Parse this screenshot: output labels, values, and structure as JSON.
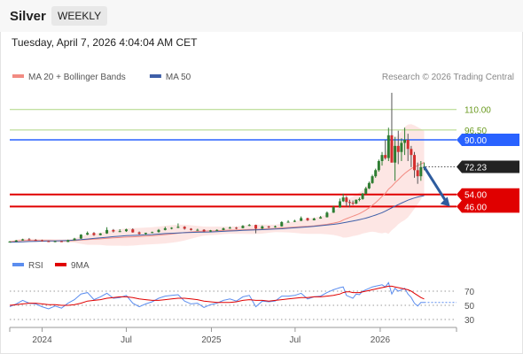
{
  "header": {
    "instrument": "Silver",
    "period_button": "WEEKLY",
    "timestamp": "Tuesday, April 7, 2026 4:04:04 AM CET"
  },
  "credit": "Research © 2026 Trading Central",
  "colors": {
    "candle_up": "#2e7d32",
    "candle_down": "#d32f2f",
    "ma20": "#f28b82",
    "bollinger_fill": "#fde3e1",
    "ma50": "#3e5fa8",
    "resistance": "#aed581",
    "pivot": "#2962ff",
    "support": "#e00000",
    "current_price": "#222222",
    "arrow": "#2e5c9e",
    "rsi": "#5b8def",
    "rsi_ma": "#e00000"
  },
  "chart_data": [
    {
      "type": "candlestick",
      "legend": [
        {
          "label": "MA 20 + Bollinger Bands",
          "color": "#f28b82"
        },
        {
          "label": "MA 50",
          "color": "#3e5fa8"
        }
      ],
      "x_tick_labels": [
        "2024",
        "Jul",
        "2025",
        "Jul",
        "2026"
      ],
      "x_ticks": [
        "2024-01-01",
        "2024-07-01",
        "2025-01-01",
        "2025-07-01",
        "2026-01-01"
      ],
      "x_range": [
        "2023-10-23",
        "2026-06-15"
      ],
      "y_range": [
        20,
        125
      ],
      "levels": [
        {
          "label": "110.00",
          "value": 110.0,
          "role": "resistance"
        },
        {
          "label": "96.50",
          "value": 96.5,
          "role": "resistance"
        },
        {
          "label": "90.00",
          "value": 90.0,
          "role": "pivot"
        },
        {
          "label": "72.23",
          "value": 72.23,
          "role": "last"
        },
        {
          "label": "54.00",
          "value": 54.0,
          "role": "support"
        },
        {
          "label": "46.00",
          "value": 46.0,
          "role": "support"
        }
      ],
      "projection": {
        "from": "2026-04-06",
        "from_value": 72.2,
        "to": "2026-06-01",
        "to_value": 46.0
      },
      "x": [
        "2023-10-23",
        "2023-11-06",
        "2023-11-20",
        "2023-12-04",
        "2023-12-18",
        "2024-01-01",
        "2024-01-15",
        "2024-01-29",
        "2024-02-12",
        "2024-02-26",
        "2024-03-11",
        "2024-03-25",
        "2024-04-08",
        "2024-04-22",
        "2024-05-06",
        "2024-05-20",
        "2024-06-03",
        "2024-06-17",
        "2024-07-01",
        "2024-07-15",
        "2024-07-29",
        "2024-08-12",
        "2024-08-26",
        "2024-09-09",
        "2024-09-23",
        "2024-10-07",
        "2024-10-21",
        "2024-11-04",
        "2024-11-18",
        "2024-12-02",
        "2024-12-16",
        "2024-12-30",
        "2025-01-13",
        "2025-01-27",
        "2025-02-10",
        "2025-02-24",
        "2025-03-10",
        "2025-03-24",
        "2025-04-07",
        "2025-04-21",
        "2025-05-05",
        "2025-05-19",
        "2025-06-02",
        "2025-06-16",
        "2025-06-30",
        "2025-07-14",
        "2025-07-28",
        "2025-08-11",
        "2025-08-25",
        "2025-09-08",
        "2025-09-22",
        "2025-10-06",
        "2025-10-13",
        "2025-10-20",
        "2025-10-27",
        "2025-11-03",
        "2025-11-10",
        "2025-11-17",
        "2025-11-24",
        "2025-12-01",
        "2025-12-08",
        "2025-12-15",
        "2025-12-22",
        "2025-12-29",
        "2026-01-05",
        "2026-01-12",
        "2026-01-19",
        "2026-01-26",
        "2026-02-02",
        "2026-02-09",
        "2026-02-16",
        "2026-02-23",
        "2026-03-02",
        "2026-03-09",
        "2026-03-16",
        "2026-03-23",
        "2026-03-30",
        "2026-04-06"
      ],
      "open": [
        22.8,
        22.9,
        23.7,
        24.4,
        24.0,
        23.8,
        23.2,
        22.8,
        23.2,
        22.7,
        23.8,
        24.9,
        27.5,
        28.6,
        27.2,
        28.3,
        30.6,
        29.6,
        29.8,
        31.0,
        29.0,
        28.0,
        28.7,
        29.2,
        30.6,
        31.7,
        32.0,
        32.7,
        31.4,
        30.6,
        30.7,
        29.6,
        30.3,
        30.6,
        31.6,
        32.1,
        31.8,
        33.3,
        33.9,
        31.5,
        32.9,
        32.7,
        33.0,
        35.8,
        36.0,
        36.6,
        38.4,
        37.0,
        38.1,
        39.0,
        42.0,
        45.5,
        49.5,
        52.0,
        49.0,
        48.5,
        48.0,
        50.5,
        51.0,
        54.5,
        58.0,
        61.5,
        66.0,
        70.0,
        76.0,
        80.0,
        78.0,
        93.0,
        75.0,
        86.0,
        82.0,
        88.0,
        90.0,
        84.0,
        80.0,
        70.0,
        66.0,
        72.0
      ],
      "high": [
        23.3,
        24.0,
        24.8,
        25.3,
        24.6,
        24.2,
        23.6,
        23.4,
        23.5,
        24.2,
        25.4,
        27.8,
        29.6,
        29.2,
        28.6,
        32.4,
        31.2,
        31.1,
        31.4,
        31.7,
        29.6,
        28.8,
        29.5,
        31.2,
        32.7,
        32.4,
        34.9,
        33.1,
        31.8,
        31.4,
        31.1,
        30.6,
        31.0,
        32.2,
        32.8,
        32.6,
        33.8,
        34.5,
        34.1,
        33.6,
        33.3,
        33.5,
        36.3,
        37.0,
        37.3,
        39.5,
        38.7,
        38.7,
        39.8,
        42.8,
        46.6,
        51.3,
        54.5,
        53.0,
        50.5,
        50.0,
        50.7,
        52.0,
        55.0,
        59.0,
        62.5,
        67.0,
        71.0,
        77.0,
        82.0,
        90.0,
        98.0,
        121.0,
        92.0,
        96.0,
        91.0,
        98.0,
        94.0,
        86.0,
        82.0,
        75.0,
        76.0,
        75.0
      ],
      "low": [
        22.5,
        22.7,
        23.5,
        23.7,
        23.6,
        22.9,
        22.8,
        22.5,
        22.6,
        22.6,
        23.7,
        24.7,
        27.2,
        26.7,
        27.0,
        28.0,
        28.9,
        29.2,
        29.3,
        28.8,
        27.5,
        27.3,
        28.5,
        28.8,
        30.3,
        31.0,
        31.8,
        30.8,
        30.2,
        30.1,
        29.1,
        29.3,
        30.0,
        30.4,
        31.4,
        31.0,
        31.6,
        33.1,
        28.4,
        31.2,
        31.8,
        32.1,
        32.8,
        35.6,
        35.8,
        36.4,
        36.5,
        36.9,
        38.0,
        38.8,
        41.8,
        45.2,
        49.0,
        46.0,
        45.5,
        47.0,
        47.5,
        49.5,
        50.5,
        54.0,
        57.5,
        61.0,
        65.0,
        69.0,
        73.0,
        77.0,
        76.0,
        75.0,
        63.0,
        74.0,
        76.0,
        80.0,
        76.0,
        72.0,
        65.0,
        61.0,
        63.0,
        70.0
      ],
      "close": [
        22.9,
        23.7,
        24.4,
        24.0,
        23.8,
        23.2,
        22.8,
        23.2,
        22.7,
        23.8,
        24.9,
        27.5,
        28.6,
        27.2,
        28.3,
        30.6,
        29.6,
        29.8,
        31.0,
        29.0,
        28.0,
        28.7,
        29.2,
        30.6,
        31.7,
        32.0,
        32.7,
        31.4,
        30.6,
        30.7,
        29.6,
        30.3,
        30.6,
        31.6,
        32.1,
        31.8,
        33.3,
        33.9,
        31.5,
        32.9,
        32.7,
        33.0,
        35.8,
        36.0,
        36.6,
        38.4,
        37.0,
        38.1,
        39.0,
        42.0,
        45.5,
        49.5,
        52.0,
        49.0,
        48.5,
        48.0,
        50.5,
        51.0,
        54.5,
        58.0,
        61.5,
        66.0,
        70.0,
        76.0,
        80.0,
        78.0,
        93.0,
        75.0,
        86.0,
        82.0,
        88.0,
        90.0,
        84.0,
        80.0,
        70.0,
        66.0,
        72.0,
        72.2
      ],
      "ma50": [
        22.5,
        22.6,
        22.8,
        23.0,
        23.1,
        23.2,
        23.3,
        23.4,
        23.5,
        23.7,
        23.9,
        24.2,
        24.6,
        25.0,
        25.4,
        25.8,
        26.2,
        26.5,
        26.8,
        27.0,
        27.2,
        27.4,
        27.6,
        27.9,
        28.2,
        28.4,
        28.6,
        28.8,
        29.0,
        29.1,
        29.2,
        29.3,
        29.5,
        29.7,
        29.9,
        30.1,
        30.3,
        30.5,
        30.6,
        30.8,
        31.0,
        31.2,
        31.4,
        31.7,
        32.0,
        32.3,
        32.6,
        33.0,
        33.4,
        33.8,
        34.3,
        34.9,
        35.3,
        35.7,
        36.1,
        36.5,
        36.9,
        37.4,
        37.9,
        38.4,
        39.0,
        39.7,
        40.4,
        41.2,
        42.0,
        43.0,
        44.1,
        45.2,
        46.3,
        47.3,
        48.3,
        49.3,
        50.2,
        51.0,
        51.7,
        52.3,
        52.8,
        53.2
      ]
    },
    {
      "type": "line",
      "legend": [
        {
          "label": "RSI",
          "color": "#5b8def"
        },
        {
          "label": "9MA",
          "color": "#e00000"
        }
      ],
      "y_tick_labels": [
        "70",
        "50",
        "30"
      ],
      "y_ticks": [
        70,
        50,
        30
      ],
      "y_range": [
        25,
        80
      ],
      "series": [
        {
          "name": "RSI",
          "values": [
            48,
            52,
            57,
            53,
            52,
            48,
            45,
            49,
            46,
            53,
            58,
            66,
            68,
            58,
            62,
            67,
            60,
            61,
            64,
            53,
            48,
            52,
            55,
            60,
            63,
            64,
            65,
            56,
            52,
            53,
            47,
            51,
            53,
            57,
            59,
            56,
            62,
            64,
            48,
            56,
            55,
            56,
            63,
            63,
            64,
            67,
            59,
            62,
            63,
            68,
            72,
            75,
            76,
            64,
            62,
            60,
            66,
            65,
            70,
            72,
            74,
            76,
            77,
            78,
            79,
            76,
            82,
            66,
            74,
            70,
            72,
            74,
            66,
            61,
            53,
            49,
            54,
            54
          ]
        },
        {
          "name": "9MA",
          "values": [
            50,
            51,
            52,
            53,
            53,
            52,
            51,
            51,
            50,
            50,
            51,
            53,
            56,
            57,
            58,
            60,
            61,
            62,
            62,
            61,
            59,
            58,
            57,
            57,
            58,
            59,
            60,
            60,
            59,
            58,
            56,
            55,
            54,
            54,
            54,
            55,
            57,
            58,
            57,
            57,
            56,
            57,
            58,
            59,
            60,
            61,
            61,
            62,
            62,
            63,
            64,
            66,
            68,
            69,
            69,
            68,
            68,
            68,
            69,
            70,
            71,
            72,
            73,
            74,
            75,
            76,
            77,
            77,
            76,
            75,
            74,
            73,
            72,
            70,
            67,
            64,
            61,
            59
          ]
        }
      ]
    }
  ]
}
